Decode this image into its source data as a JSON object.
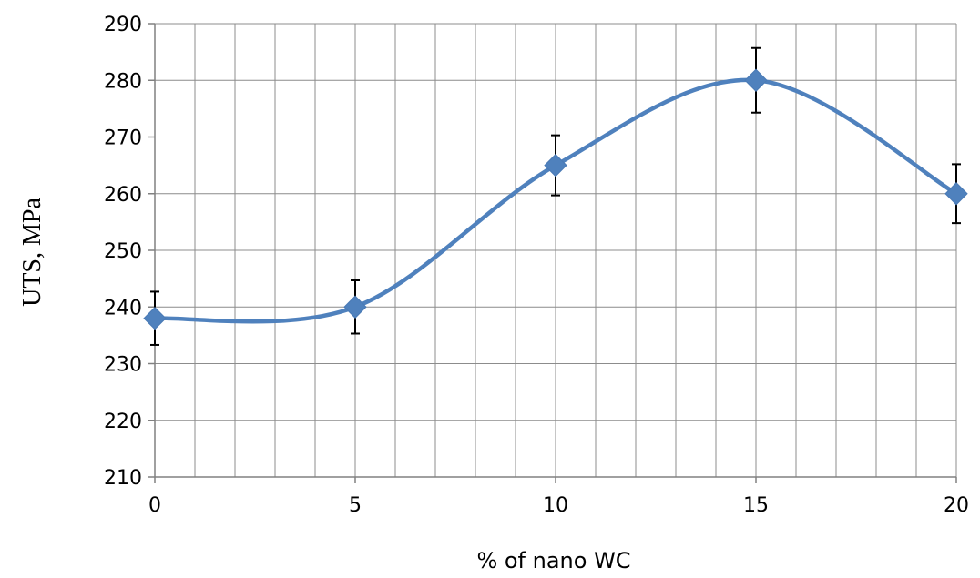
{
  "chart_data": {
    "type": "line",
    "title": "",
    "xlabel": "% of nano WC",
    "ylabel": "UTS, MPa",
    "x": [
      0,
      5,
      10,
      15,
      20
    ],
    "series": [
      {
        "values": [
          238,
          240,
          265,
          280,
          260
        ],
        "error": [
          4.7,
          4.7,
          5.3,
          5.7,
          5.2
        ],
        "color": "#4f81bd",
        "marker": "diamond",
        "smooth": true
      }
    ],
    "xlim": [
      0,
      20
    ],
    "ylim": [
      210,
      290
    ],
    "xticks": [
      "0",
      "5",
      "10",
      "15",
      "20"
    ],
    "yticks": [
      "210",
      "220",
      "230",
      "240",
      "250",
      "260",
      "270",
      "280",
      "290"
    ],
    "x_minor_step": 1,
    "grid": true,
    "legend": "none"
  }
}
